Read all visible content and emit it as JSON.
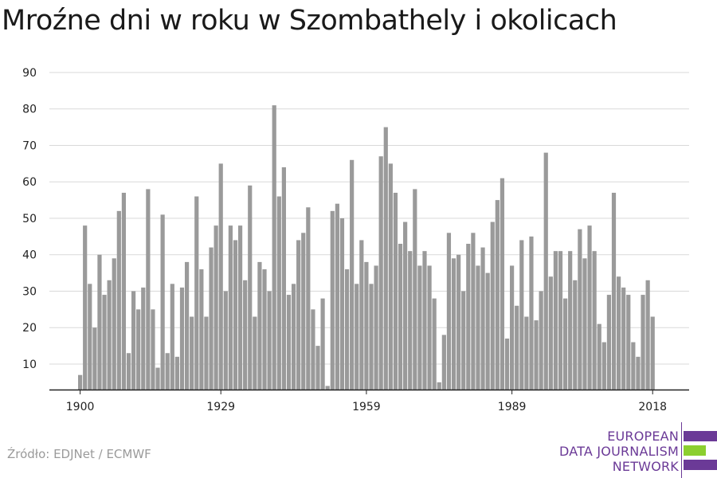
{
  "chart_data": {
    "type": "bar",
    "title": "Mroźne dni w roku w Szombathely i okolicach",
    "xlabel": "",
    "ylabel": "",
    "x_start": 1900,
    "x_end": 2018,
    "xticks": [
      1900,
      1929,
      1959,
      1989,
      2018
    ],
    "yticks": [
      10,
      20,
      30,
      40,
      50,
      60,
      70,
      80,
      90
    ],
    "ylim": [
      3,
      90
    ],
    "grid": true,
    "bar_color": "#9a9a9a",
    "values": [
      7,
      48,
      32,
      20,
      40,
      29,
      33,
      39,
      52,
      57,
      13,
      30,
      25,
      31,
      58,
      25,
      9,
      51,
      13,
      32,
      12,
      31,
      38,
      23,
      56,
      36,
      23,
      42,
      48,
      65,
      30,
      48,
      44,
      48,
      33,
      59,
      23,
      38,
      36,
      30,
      81,
      56,
      64,
      29,
      32,
      44,
      46,
      53,
      25,
      15,
      28,
      4,
      52,
      54,
      50,
      36,
      66,
      32,
      44,
      38,
      32,
      37,
      67,
      75,
      65,
      57,
      43,
      49,
      41,
      58,
      37,
      41,
      37,
      28,
      5,
      18,
      46,
      39,
      40,
      30,
      43,
      46,
      37,
      42,
      35,
      49,
      55,
      61,
      17,
      37,
      26,
      44,
      23,
      45,
      22,
      30,
      68,
      34,
      41,
      41,
      28,
      41,
      33,
      47,
      39,
      48,
      41,
      21,
      16,
      29,
      57,
      34,
      31,
      29,
      16,
      12,
      29,
      33,
      23
    ]
  },
  "source": "Źródło: EDJNet / ECMWF",
  "logo": {
    "lines": [
      "EUROPEAN",
      "DATA JOURNALISM",
      "NETWORK"
    ],
    "colors": {
      "purple": "#6b3a97",
      "green": "#8ccf2f"
    }
  }
}
